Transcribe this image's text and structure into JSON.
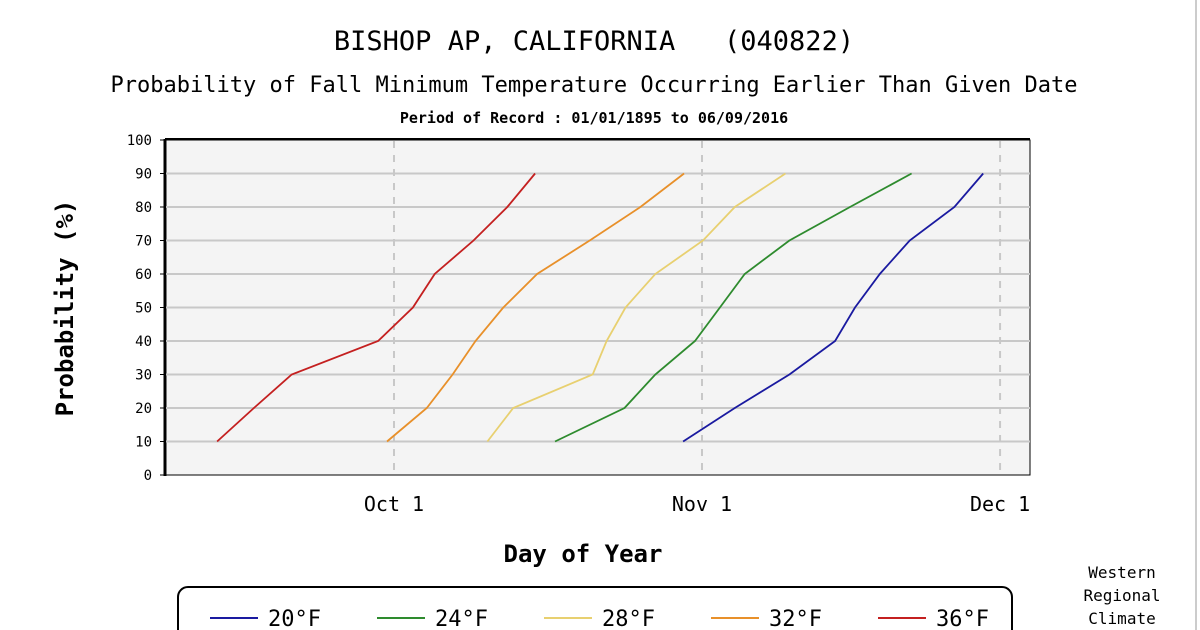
{
  "chart_data": {
    "type": "line",
    "title": "BISHOP AP, CALIFORNIA   (040822)",
    "subtitle": "Probability of Fall Minimum Temperature Occurring Earlier Than Given Date",
    "period": "Period of Record : 01/01/1895 to 06/09/2016",
    "xlabel": "Day of Year",
    "ylabel": "Probability (%)",
    "x_units": "day of year",
    "xlim": [
      251,
      338
    ],
    "ylim": [
      0,
      100
    ],
    "yticks": [
      0,
      10,
      20,
      30,
      40,
      50,
      60,
      70,
      80,
      90,
      100
    ],
    "xticks": [
      {
        "day": 274,
        "label": "Oct 1"
      },
      {
        "day": 305,
        "label": "Nov 1"
      },
      {
        "day": 335,
        "label": "Dec 1"
      }
    ],
    "grid": true,
    "legend_placement": "bottom",
    "probabilities": [
      10,
      20,
      30,
      40,
      50,
      60,
      70,
      80,
      90
    ],
    "series": [
      {
        "name": "20°F",
        "color": "#1a1aa0",
        "days": [
          303.1,
          308.3,
          313.8,
          318.4,
          320.4,
          322.9,
          325.9,
          330.4,
          333.3
        ]
      },
      {
        "name": "24°F",
        "color": "#2e8b2e",
        "days": [
          290.2,
          297.2,
          300.3,
          304.3,
          306.8,
          309.3,
          313.8,
          319.9,
          326.1
        ]
      },
      {
        "name": "28°F",
        "color": "#e8d070",
        "days": [
          283.4,
          286.0,
          294.0,
          295.4,
          297.3,
          300.3,
          305.1,
          308.3,
          313.4
        ]
      },
      {
        "name": "32°F",
        "color": "#e8902a",
        "days": [
          273.3,
          277.3,
          279.9,
          282.2,
          285.0,
          288.4,
          293.7,
          298.8,
          303.2
        ]
      },
      {
        "name": "36°F",
        "color": "#c42020",
        "days": [
          256.2,
          259.9,
          263.7,
          272.4,
          275.9,
          278.1,
          282.0,
          285.4,
          288.2
        ]
      }
    ],
    "credit": [
      "Western",
      "Regional",
      "Climate"
    ]
  }
}
